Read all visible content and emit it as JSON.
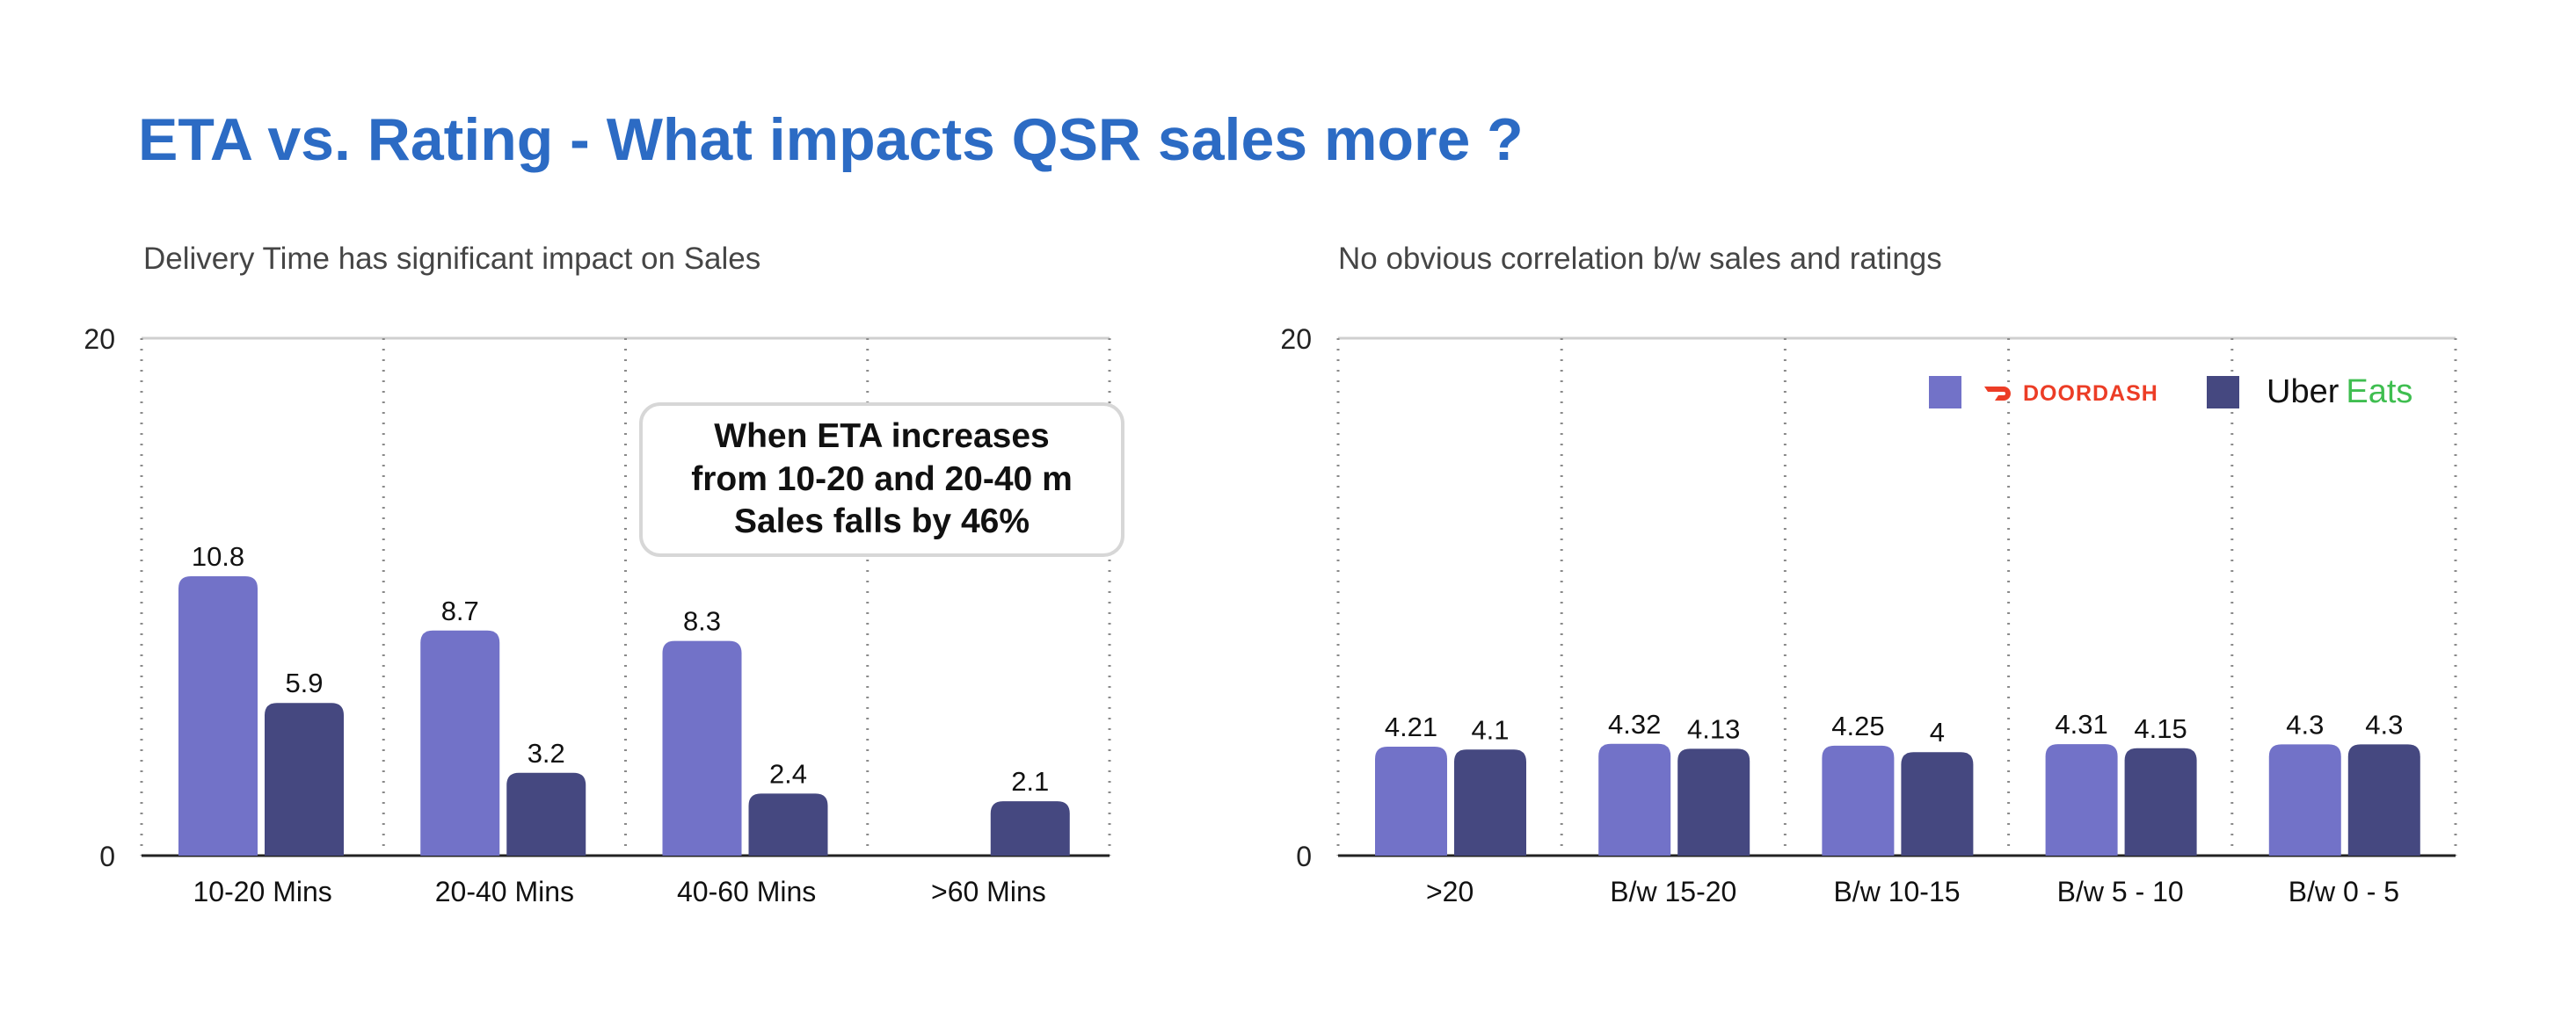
{
  "page": {
    "title": "ETA vs. Rating - What impacts QSR sales more ?"
  },
  "colors": {
    "title": "#2c6bc4",
    "doordash_bar": "#7272c8",
    "ubereats_bar": "#454880",
    "doordash_logo": "#ec3d26",
    "ubereats_eats": "#3fbe50"
  },
  "legend": {
    "doordash": "DOORDASH",
    "uber_eats_uber": "Uber",
    "uber_eats_eats": "Eats",
    "doordash_icon": "doordash-logo-icon"
  },
  "chart_data": [
    {
      "type": "bar",
      "title": "Delivery Time has significant impact on Sales",
      "categories": [
        "10-20 Mins",
        "20-40 Mins",
        "40-60 Mins",
        ">60 Mins"
      ],
      "series": [
        {
          "values": [
            10.8,
            8.7,
            8.3,
            null
          ],
          "labels": [
            "10.8",
            "8.7",
            "8.3",
            ""
          ]
        },
        {
          "values": [
            5.9,
            3.2,
            2.4,
            2.1
          ],
          "labels": [
            "5.9",
            "3.2",
            "2.4",
            "2.1"
          ]
        }
      ],
      "ylim": [
        0,
        20
      ],
      "yticks": [
        "0",
        "20"
      ],
      "grid": "vertical dotted",
      "annotation": "When ETA increases\nfrom 10-20 and 20-40 m\nSales falls by 46%"
    },
    {
      "type": "bar",
      "title": "No obvious correlation b/w sales and ratings",
      "categories": [
        ">20",
        "B/w 15-20",
        "B/w 10-15",
        "B/w 5 - 10",
        "B/w 0 - 5"
      ],
      "series": [
        {
          "name": "DoorDash",
          "values": [
            4.21,
            4.32,
            4.25,
            4.31,
            4.3
          ],
          "labels": [
            "4.21",
            "4.32",
            "4.25",
            "4.31",
            "4.3"
          ]
        },
        {
          "name": "Uber Eats",
          "values": [
            4.1,
            4.13,
            4,
            4.15,
            4.3
          ],
          "labels": [
            "4.1",
            "4.13",
            "4",
            "4.15",
            "4.3"
          ]
        }
      ],
      "ylim": [
        0,
        20
      ],
      "yticks": [
        "0",
        "20"
      ],
      "grid": "vertical dotted",
      "legend": "top-right"
    }
  ]
}
